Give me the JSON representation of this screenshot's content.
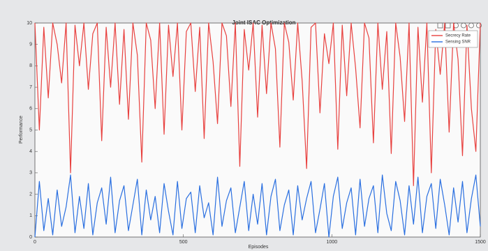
{
  "chart_data": {
    "type": "line",
    "title": "Joint ISAC Optimization",
    "x_label": "Episodes",
    "y_label": "Performance",
    "x": [
      0,
      15,
      30,
      45,
      60,
      75,
      90,
      105,
      120,
      135,
      150,
      165,
      180,
      195,
      210,
      225,
      240,
      255,
      270,
      285,
      300,
      315,
      330,
      345,
      360,
      375,
      390,
      405,
      420,
      435,
      450,
      465,
      480,
      495,
      510,
      525,
      540,
      555,
      570,
      585,
      600,
      615,
      630,
      645,
      660,
      675,
      690,
      705,
      720,
      735,
      750,
      765,
      780,
      795,
      810,
      825,
      840,
      855,
      870,
      885,
      900,
      915,
      930,
      945,
      960,
      975,
      990,
      1005,
      1020,
      1035,
      1050,
      1065,
      1080,
      1095,
      1110,
      1125,
      1140,
      1155,
      1170,
      1185,
      1200,
      1215,
      1230,
      1245,
      1260,
      1275,
      1290,
      1305,
      1320,
      1335,
      1350,
      1365,
      1380,
      1395,
      1410,
      1425,
      1440,
      1455,
      1470,
      1485,
      1500
    ],
    "series": [
      {
        "name": "Secrecy Rate",
        "color": "#e8413f",
        "values": [
          10,
          5,
          9.8,
          6.5,
          10,
          9,
          7.2,
          10,
          3,
          9.9,
          8,
          10,
          6.9,
          9.5,
          10,
          4.5,
          9.8,
          7,
          10,
          6.2,
          9.7,
          5.5,
          10,
          8.5,
          3.5,
          10,
          9.2,
          6,
          10,
          4.8,
          9.9,
          7.5,
          10,
          5,
          9.6,
          10,
          6.8,
          9.8,
          4.6,
          10,
          8.2,
          5.3,
          10,
          9.4,
          6.1,
          10,
          3.3,
          9.7,
          7.8,
          10,
          5.6,
          9.9,
          6.7,
          10,
          8.8,
          4.2,
          10,
          9.1,
          6.4,
          10,
          7.3,
          3.2,
          9.8,
          10,
          5.8,
          9.5,
          8.1,
          10,
          4.1,
          9.9,
          6.6,
          10,
          7.9,
          5.1,
          10,
          9.3,
          4.4,
          10,
          6.9,
          9.6,
          3.9,
          10,
          8.4,
          5.4,
          10,
          2.4,
          9.8,
          6.3,
          10,
          3,
          9.7,
          7.6,
          10,
          4.9,
          10,
          8.3,
          3.8,
          9.9,
          6,
          4,
          10
        ]
      },
      {
        "name": "Sensing SNR",
        "color": "#2a6fe0",
        "values": [
          0,
          2.6,
          0.3,
          1.8,
          0.1,
          2.2,
          0.5,
          1.4,
          2.9,
          0.2,
          1.9,
          0.4,
          2.5,
          0.1,
          1.6,
          2.3,
          0.6,
          2.8,
          0.2,
          1.7,
          2.4,
          0.3,
          1.5,
          2.7,
          0.1,
          2.2,
          0.8,
          1.9,
          0.2,
          2.5,
          1.2,
          0.1,
          2.6,
          0.4,
          1.8,
          2.1,
          0.2,
          2.4,
          0.9,
          1.6,
          0.1,
          2.8,
          0.5,
          1.7,
          2.3,
          0.2,
          1.4,
          2.6,
          0.3,
          2,
          0.6,
          2.5,
          0.1,
          1.9,
          2.7,
          0.3,
          1.5,
          2.2,
          0.1,
          2.4,
          0.8,
          1.8,
          2.6,
          0.2,
          1.3,
          2.5,
          0,
          1.9,
          2.8,
          0.4,
          1.6,
          2.3,
          0.1,
          2.7,
          0.5,
          1.8,
          2.4,
          0.2,
          2.9,
          1.1,
          0.3,
          2.6,
          1.7,
          0.1,
          2.4,
          0.6,
          2.8,
          0.2,
          1.9,
          2.5,
          0.4,
          2.7,
          1.5,
          0.1,
          2.3,
          0.7,
          2.6,
          0.2,
          1.8,
          2.9,
          0.5
        ]
      }
    ],
    "xlim": [
      0,
      1500
    ],
    "xticks": [
      0,
      500,
      1000,
      1500
    ],
    "ylim": [
      0,
      10
    ],
    "yticks": [
      0,
      1,
      2,
      3,
      4,
      5,
      6,
      7,
      8,
      9,
      10
    ],
    "legend": "upper right"
  }
}
